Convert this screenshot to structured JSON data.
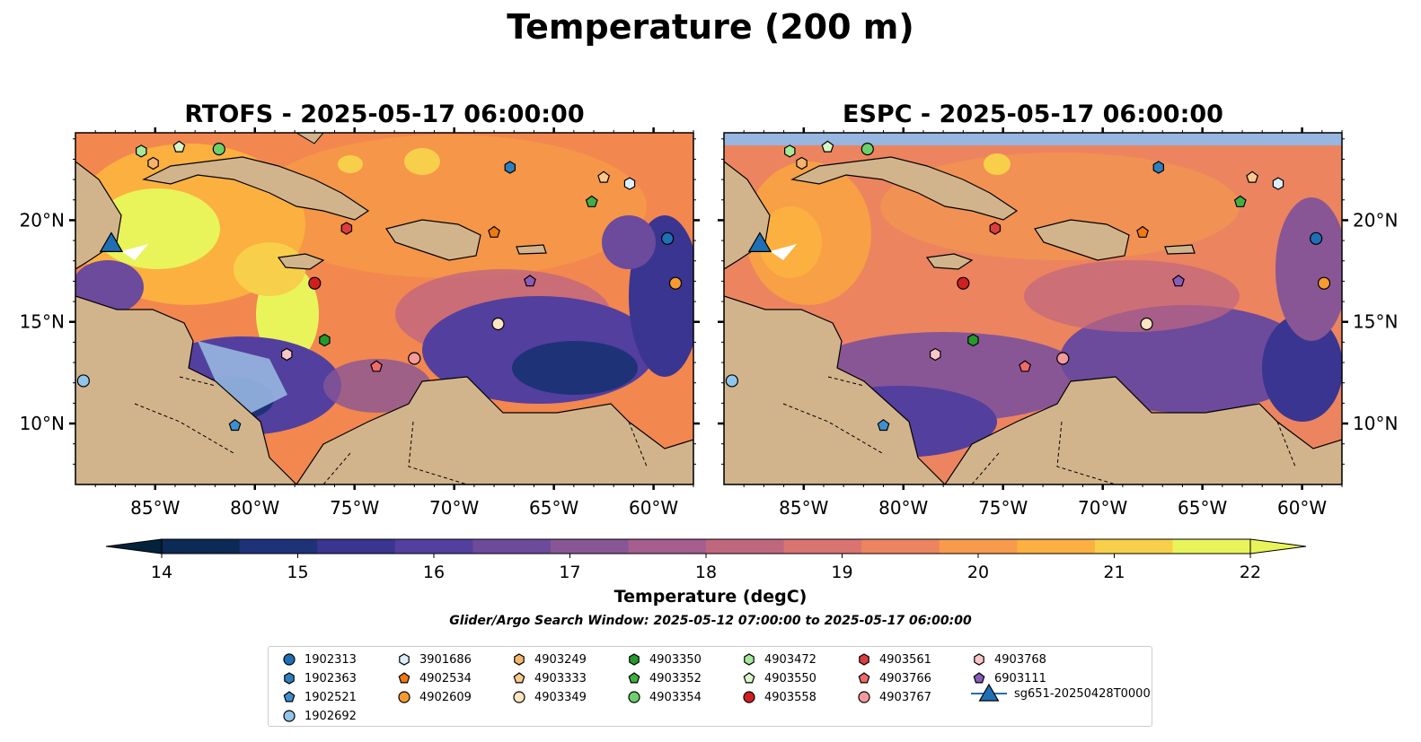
{
  "suptitle": "Temperature (200 m)",
  "panels": [
    {
      "title": "RTOFS - 2025-05-17 06:00:00"
    },
    {
      "title": "ESPC - 2025-05-17 06:00:00"
    }
  ],
  "lon_ticks": [
    "85°W",
    "80°W",
    "75°W",
    "70°W",
    "65°W",
    "60°W"
  ],
  "lat_ticks": [
    "20°N",
    "15°N",
    "10°N"
  ],
  "colorbar": {
    "label": "Temperature (degC)",
    "ticks": [
      "14",
      "15",
      "16",
      "17",
      "18",
      "19",
      "20",
      "21",
      "22"
    ],
    "colors": [
      "#04223a",
      "#0c2a56",
      "#1e3278",
      "#3a3590",
      "#533f9e",
      "#6c4a9c",
      "#885695",
      "#a55e8d",
      "#c06780",
      "#d97470",
      "#ec8460",
      "#f79a4c",
      "#fbb040",
      "#f7cf4a",
      "#e9f35a"
    ]
  },
  "search_window": "Glider/Argo Search Window: 2025-05-12 07:00:00 to 2025-05-17 06:00:00",
  "colors": {
    "land": "#d2b48c",
    "ocean_shallow": "#97b6e0",
    "deep_cold": "#05243a"
  },
  "legend": [
    {
      "label": "1902313",
      "shape": "circle",
      "color": "#1f6fb5"
    },
    {
      "label": "1902363",
      "shape": "hexagon",
      "color": "#2c80c0"
    },
    {
      "label": "1902521",
      "shape": "pentagon",
      "color": "#3f8fd0"
    },
    {
      "label": "1902692",
      "shape": "circle",
      "color": "#92c5ea"
    },
    {
      "label": "3901686",
      "shape": "hexagon",
      "color": "#dbeefa"
    },
    {
      "label": "4902534",
      "shape": "pentagon",
      "color": "#f07a10"
    },
    {
      "label": "4902609",
      "shape": "circle",
      "color": "#f79a32"
    },
    {
      "label": "4903249",
      "shape": "hexagon",
      "color": "#f5b46e"
    },
    {
      "label": "4903333",
      "shape": "pentagon",
      "color": "#f9c88e"
    },
    {
      "label": "4903349",
      "shape": "circle",
      "color": "#fde4c2"
    },
    {
      "label": "4903350",
      "shape": "hexagon",
      "color": "#249a2c"
    },
    {
      "label": "4903352",
      "shape": "pentagon",
      "color": "#3fb041"
    },
    {
      "label": "4903354",
      "shape": "circle",
      "color": "#6dd06b"
    },
    {
      "label": "4903472",
      "shape": "hexagon",
      "color": "#a5e89a"
    },
    {
      "label": "4903550",
      "shape": "pentagon",
      "color": "#d8f7c8"
    },
    {
      "label": "4903558",
      "shape": "circle",
      "color": "#cf2020"
    },
    {
      "label": "4903561",
      "shape": "hexagon",
      "color": "#dc3d3d"
    },
    {
      "label": "4903766",
      "shape": "pentagon",
      "color": "#f06a6a"
    },
    {
      "label": "4903767",
      "shape": "circle",
      "color": "#f59a9a"
    },
    {
      "label": "4903768",
      "shape": "hexagon",
      "color": "#fbc6c6"
    },
    {
      "label": "6903111",
      "shape": "pentagon",
      "color": "#8a5bb8"
    },
    {
      "label": "sg651-20250428T0000",
      "shape": "triangle",
      "color": "#1f6fb5"
    }
  ],
  "markers": [
    {
      "id": "1902313",
      "lon": -59.3,
      "lat": 19.1
    },
    {
      "id": "1902363",
      "lon": -67.2,
      "lat": 22.6
    },
    {
      "id": "1902692",
      "lon": -88.6,
      "lat": 12.1
    },
    {
      "id": "3901686",
      "lon": -61.2,
      "lat": 21.8
    },
    {
      "id": "4902534",
      "lon": -68.0,
      "lat": 19.4
    },
    {
      "id": "4902609",
      "lon": -58.9,
      "lat": 16.9
    },
    {
      "id": "4903249",
      "lon": -85.1,
      "lat": 22.8
    },
    {
      "id": "4903333",
      "lon": -62.5,
      "lat": 22.1
    },
    {
      "id": "4903349",
      "lon": -67.8,
      "lat": 14.9
    },
    {
      "id": "4903350",
      "lon": -76.5,
      "lat": 14.1
    },
    {
      "id": "4903352",
      "lon": -63.1,
      "lat": 20.9
    },
    {
      "id": "4903354",
      "lon": -81.8,
      "lat": 23.5
    },
    {
      "id": "4903472",
      "lon": -85.7,
      "lat": 23.4
    },
    {
      "id": "4903550",
      "lon": -83.8,
      "lat": 23.6
    },
    {
      "id": "4903558",
      "lon": -77.0,
      "lat": 16.9
    },
    {
      "id": "4903561",
      "lon": -75.4,
      "lat": 19.6
    },
    {
      "id": "4903766",
      "lon": -73.9,
      "lat": 12.8
    },
    {
      "id": "4903767",
      "lon": -72.0,
      "lat": 13.2
    },
    {
      "id": "4903768",
      "lon": -78.4,
      "lat": 13.4
    },
    {
      "id": "6903111",
      "lon": -66.2,
      "lat": 17.0
    },
    {
      "id": "1902521",
      "lon": -81.0,
      "lat": 9.9
    }
  ],
  "glider": {
    "id": "sg651-20250428T0000",
    "lon": -87.2,
    "lat": 18.9
  }
}
